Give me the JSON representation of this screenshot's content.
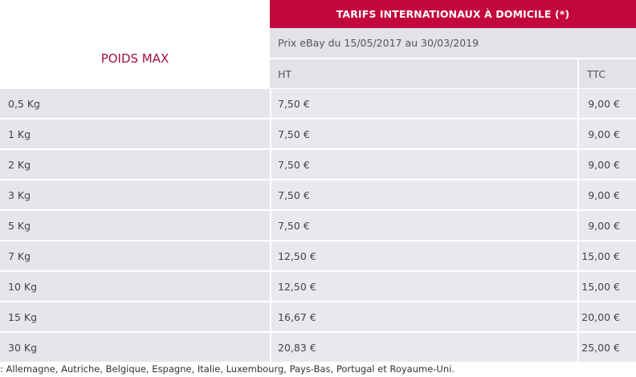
{
  "table": {
    "title": "TARIFS INTERNATIONAUX À DOMICILE (*)",
    "row_header": "POIDS MAX",
    "period": "Prix eBay du 15/05/2017 au 30/03/2019",
    "col_ht": "HT",
    "col_ttc": "TTC",
    "rows": [
      {
        "weight": "0,5 Kg",
        "ht": "7,50 €",
        "ttc": "9,00 €"
      },
      {
        "weight": "1 Kg",
        "ht": "7,50 €",
        "ttc": "9,00 €"
      },
      {
        "weight": "2 Kg",
        "ht": "7,50 €",
        "ttc": "9,00 €"
      },
      {
        "weight": "3 Kg",
        "ht": "7,50 €",
        "ttc": "9,00 €"
      },
      {
        "weight": "5 Kg",
        "ht": "7,50 €",
        "ttc": "9,00 €"
      },
      {
        "weight": "7 Kg",
        "ht": "12,50 €",
        "ttc": "15,00 €"
      },
      {
        "weight": "10 Kg",
        "ht": "12,50 €",
        "ttc": "15,00 €"
      },
      {
        "weight": "15 Kg",
        "ht": "16,67 €",
        "ttc": "20,00 €"
      },
      {
        "weight": "30 Kg",
        "ht": "20,83 €",
        "ttc": "25,00 €"
      }
    ]
  },
  "footnote": ": Allemagne, Autriche, Belgique, Espagne, Italie, Luxembourg, Pays-Bas, Portugal et Royaume-Uni.",
  "colors": {
    "accent": "#c3063c",
    "poids_text": "#a3103a",
    "cell_bg": "#e7e9ed"
  }
}
